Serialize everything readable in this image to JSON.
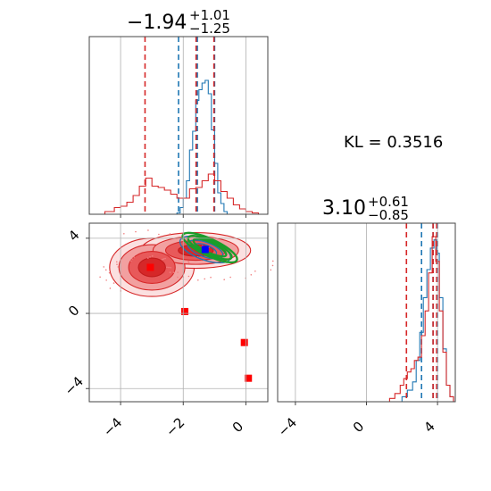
{
  "chart_data": [
    {
      "panel": "x-marginal",
      "type": "histogram",
      "title": {
        "median": "−1.94",
        "plus": "+1.01",
        "minus": "−1.25"
      },
      "xlim": [
        -5,
        0.7
      ],
      "xticks": [
        -4,
        -2,
        0
      ],
      "series": [
        {
          "color": "#1f77b4",
          "quantiles": [
            -2.15,
            -1.55,
            -1.0
          ],
          "bins": [
            [
              -2.3,
              0
            ],
            [
              -2.2,
              0.01
            ],
            [
              -2.1,
              0.05
            ],
            [
              -2.0,
              0.12
            ],
            [
              -1.9,
              0.25
            ],
            [
              -1.8,
              0.48
            ],
            [
              -1.7,
              0.62
            ],
            [
              -1.6,
              0.85
            ],
            [
              -1.5,
              0.93
            ],
            [
              -1.4,
              0.98
            ],
            [
              -1.3,
              1.0
            ],
            [
              -1.2,
              0.9
            ],
            [
              -1.1,
              0.63
            ],
            [
              -1.0,
              0.38
            ],
            [
              -0.9,
              0.16
            ],
            [
              -0.8,
              0.08
            ],
            [
              -0.7,
              0.02
            ],
            [
              -0.6,
              0
            ]
          ]
        },
        {
          "color": "#d62728",
          "quantiles": [
            -3.22,
            -1.59,
            -1.02
          ],
          "bins": [
            [
              -4.7,
              0
            ],
            [
              -4.5,
              0.02
            ],
            [
              -4.2,
              0.05
            ],
            [
              -4.0,
              0.06
            ],
            [
              -3.8,
              0.09
            ],
            [
              -3.6,
              0.14
            ],
            [
              -3.4,
              0.21
            ],
            [
              -3.2,
              0.27
            ],
            [
              -3.0,
              0.21
            ],
            [
              -2.8,
              0.2
            ],
            [
              -2.6,
              0.18
            ],
            [
              -2.4,
              0.15
            ],
            [
              -2.2,
              0.12
            ],
            [
              -2.0,
              0.12
            ],
            [
              -1.8,
              0.19
            ],
            [
              -1.6,
              0.2
            ],
            [
              -1.4,
              0.25
            ],
            [
              -1.2,
              0.3
            ],
            [
              -1.0,
              0.25
            ],
            [
              -0.8,
              0.17
            ],
            [
              -0.6,
              0.12
            ],
            [
              -0.4,
              0.07
            ],
            [
              -0.2,
              0.04
            ],
            [
              0.0,
              0.02
            ],
            [
              0.2,
              0.01
            ],
            [
              0.4,
              0
            ]
          ]
        }
      ]
    },
    {
      "panel": "y-marginal",
      "type": "histogram",
      "title": {
        "median": "3.10",
        "plus": "+0.61",
        "minus": "−0.85"
      },
      "xlim": [
        -5,
        5
      ],
      "xticks": [
        -4,
        0,
        4
      ],
      "series": [
        {
          "color": "#1f77b4",
          "quantiles": [
            3.1,
            3.75,
            4.0
          ],
          "bins": [
            [
              1.5,
              0
            ],
            [
              2.0,
              0.03
            ],
            [
              2.3,
              0.07
            ],
            [
              2.6,
              0.12
            ],
            [
              2.8,
              0.25
            ],
            [
              3.0,
              0.42
            ],
            [
              3.2,
              0.63
            ],
            [
              3.4,
              0.8
            ],
            [
              3.6,
              0.93
            ],
            [
              3.8,
              0.98
            ],
            [
              3.95,
              0.9
            ],
            [
              4.1,
              0.63
            ],
            [
              4.3,
              0.32
            ],
            [
              4.5,
              0.1
            ],
            [
              4.7,
              0.03
            ],
            [
              4.9,
              0
            ]
          ]
        },
        {
          "color": "#d62728",
          "quantiles": [
            2.25,
            3.75,
            3.95
          ],
          "bins": [
            [
              1.0,
              0
            ],
            [
              1.3,
              0.02
            ],
            [
              1.6,
              0.05
            ],
            [
              1.9,
              0.1
            ],
            [
              2.1,
              0.14
            ],
            [
              2.3,
              0.18
            ],
            [
              2.5,
              0.2
            ],
            [
              2.7,
              0.25
            ],
            [
              2.9,
              0.27
            ],
            [
              3.1,
              0.4
            ],
            [
              3.3,
              0.55
            ],
            [
              3.5,
              0.78
            ],
            [
              3.7,
              1.0
            ],
            [
              3.9,
              0.85
            ],
            [
              4.1,
              0.55
            ],
            [
              4.3,
              0.3
            ],
            [
              4.5,
              0.1
            ],
            [
              4.7,
              0.03
            ],
            [
              4.9,
              0
            ]
          ]
        }
      ]
    },
    {
      "panel": "joint",
      "type": "contour",
      "xlim": [
        -5,
        0.7
      ],
      "ylim": [
        -4.7,
        4.8
      ],
      "xticks": [
        -4,
        -2,
        0
      ],
      "yticks": [
        -4,
        0,
        4
      ],
      "markers": [
        {
          "x": -3.05,
          "y": 2.45,
          "color": "#ff0000"
        },
        {
          "x": -1.95,
          "y": 0.1,
          "color": "#ff0000"
        },
        {
          "x": -0.05,
          "y": -1.55,
          "color": "#ff0000"
        },
        {
          "x": 0.08,
          "y": -3.45,
          "color": "#ff0000"
        },
        {
          "x": -1.3,
          "y": 3.4,
          "color": "#0000ff"
        }
      ]
    }
  ],
  "annotation": {
    "kl_text": "KL = 0.3516"
  }
}
